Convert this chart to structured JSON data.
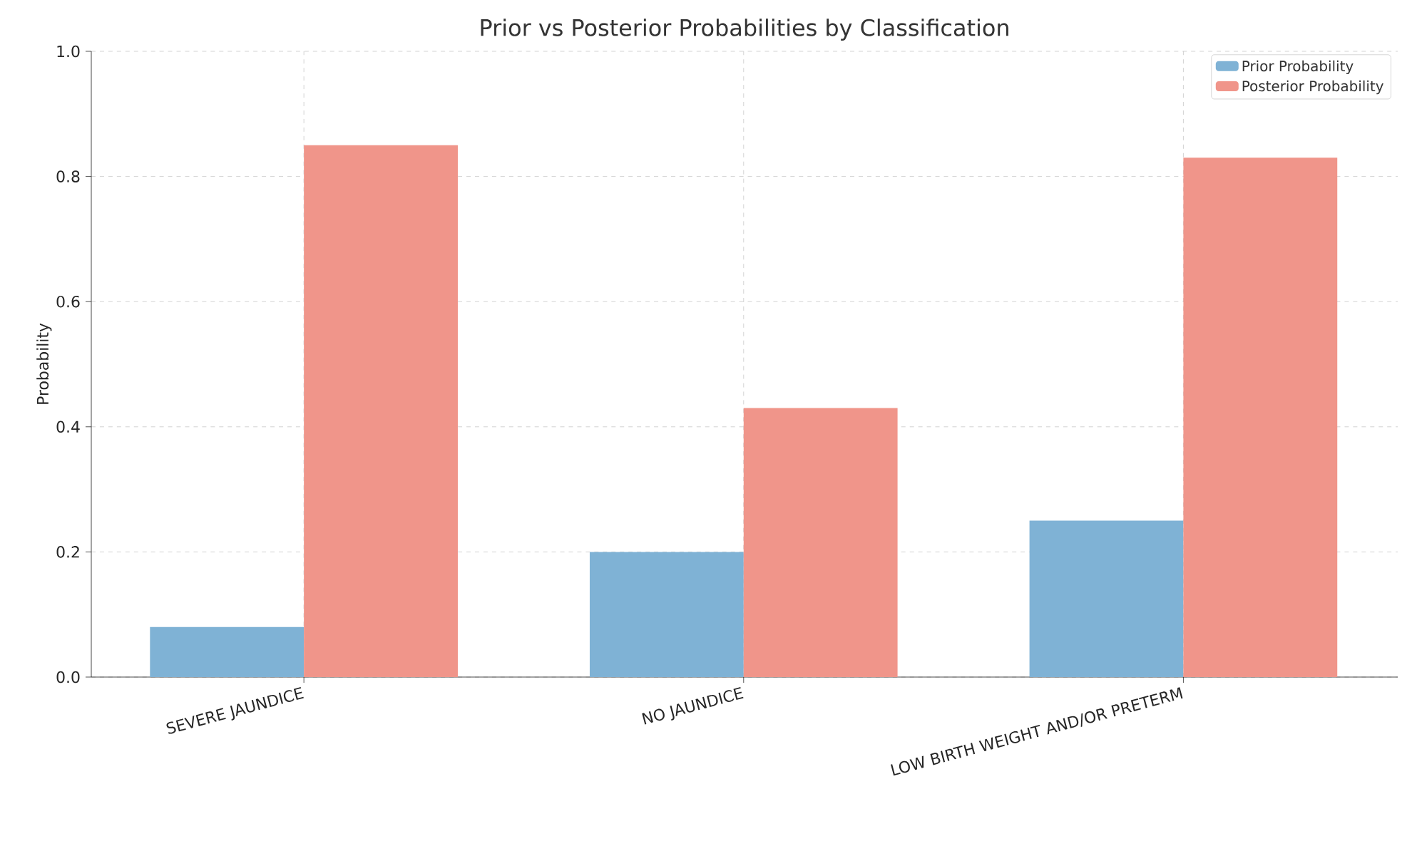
{
  "chart_data": {
    "type": "bar",
    "title": "Prior vs Posterior Probabilities by Classification",
    "ylabel": "Probability",
    "categories": [
      "SEVERE JAUNDICE",
      "NO JAUNDICE",
      "LOW BIRTH WEIGHT AND/OR PRETERM"
    ],
    "series": [
      {
        "name": "Prior Probability",
        "color": "#7fb2d5",
        "values": [
          0.08,
          0.2,
          0.25
        ]
      },
      {
        "name": "Posterior Probability",
        "color": "#f0958a",
        "values": [
          0.85,
          0.43,
          0.83
        ]
      }
    ],
    "ylim": [
      0,
      1.0
    ],
    "yticks": [
      {
        "value": 0,
        "label": "0.0"
      },
      {
        "value": 0.2,
        "label": "0.2"
      },
      {
        "value": 0.4,
        "label": "0.4"
      },
      {
        "value": 0.6,
        "label": "0.6"
      },
      {
        "value": 0.8,
        "label": "0.8"
      },
      {
        "value": 1.0,
        "label": "1.0"
      }
    ],
    "grid": true,
    "legend": "top right"
  }
}
